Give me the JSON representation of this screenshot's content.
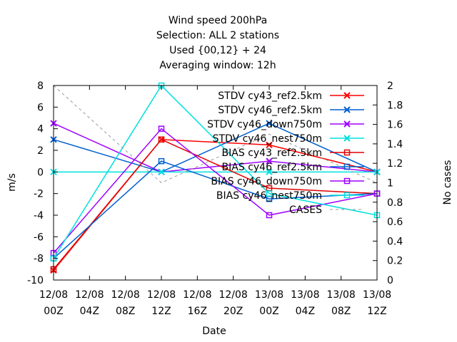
{
  "chart_data": {
    "type": "line",
    "title": [
      "Wind speed 200hPa",
      "Selection: ALL      2 stations",
      "Used {00,12} + 24",
      "Averaging window: 12h"
    ],
    "xlabel": "Date",
    "ylabel": "m/s",
    "y2label": "No cases",
    "x_ticks": [
      [
        "12/08",
        "00Z"
      ],
      [
        "12/08",
        "04Z"
      ],
      [
        "12/08",
        "08Z"
      ],
      [
        "12/08",
        "12Z"
      ],
      [
        "12/08",
        "16Z"
      ],
      [
        "12/08",
        "20Z"
      ],
      [
        "13/08",
        "00Z"
      ],
      [
        "13/08",
        "04Z"
      ],
      [
        "13/08",
        "08Z"
      ],
      [
        "13/08",
        "12Z"
      ]
    ],
    "x_hours": [
      0,
      4,
      8,
      12,
      16,
      20,
      24,
      28,
      32,
      36
    ],
    "ylim": [
      -10,
      8
    ],
    "y_ticks": [
      -10,
      -8,
      -6,
      -4,
      -2,
      0,
      2,
      4,
      6,
      8
    ],
    "y2lim": [
      0,
      2
    ],
    "y2_ticks": [
      "0",
      "0.2",
      "0.4",
      "0.6",
      "0.8",
      "1",
      "1.2",
      "1.4",
      "1.6",
      "1.8",
      "2"
    ],
    "grid": false,
    "legend_position": "top-right",
    "series": [
      {
        "name": "STDV cy43_ref2.5km",
        "color": "#ff0000",
        "marker": "x",
        "axis": "y",
        "x": [
          0,
          12,
          24,
          36
        ],
        "y": [
          -9.1,
          3.0,
          2.5,
          0.0
        ]
      },
      {
        "name": "STDV cy46_ref2.5km",
        "color": "#0060d0",
        "marker": "x",
        "axis": "y",
        "x": [
          0,
          12,
          24,
          36
        ],
        "y": [
          3.0,
          0.0,
          4.5,
          0.0
        ]
      },
      {
        "name": "STDV cy46_down750m",
        "color": "#a000ff",
        "marker": "x",
        "axis": "y",
        "x": [
          0,
          12,
          24,
          36
        ],
        "y": [
          4.5,
          0.0,
          1.0,
          0.0
        ]
      },
      {
        "name": "STDV cy46_nest750m",
        "color": "#00e0e0",
        "marker": "x",
        "axis": "y",
        "x": [
          0,
          12,
          24,
          36
        ],
        "y": [
          0.0,
          0.0,
          0.0,
          0.0
        ]
      },
      {
        "name": "BIAS cy43_ref2.5km",
        "color": "#e00000",
        "marker": "square",
        "axis": "y",
        "x": [
          0,
          12,
          24,
          36
        ],
        "y": [
          -9.0,
          3.0,
          -1.5,
          -2.0
        ]
      },
      {
        "name": "BIAS cy46_ref2.5km",
        "color": "#0060d0",
        "marker": "square",
        "axis": "y",
        "x": [
          0,
          12,
          24,
          36
        ],
        "y": [
          -8.0,
          1.0,
          -2.5,
          -2.0
        ]
      },
      {
        "name": "BIAS cy46_down750m",
        "color": "#a000ff",
        "marker": "square",
        "axis": "y",
        "x": [
          0,
          12,
          24,
          36
        ],
        "y": [
          -7.5,
          4.0,
          -4.0,
          -2.0
        ]
      },
      {
        "name": "BIAS cy46_nest750m",
        "color": "#00e0e0",
        "marker": "square",
        "axis": "y",
        "x": [
          0,
          12,
          24,
          36
        ],
        "y": [
          -8.0,
          8.0,
          -2.0,
          -4.0
        ]
      },
      {
        "name": "CASES",
        "color": "#999999",
        "marker": "none",
        "dashed": true,
        "axis": "y2",
        "x": [
          0,
          12,
          24,
          36
        ],
        "y": [
          2.0,
          1.0,
          1.5,
          1.0
        ]
      }
    ]
  }
}
